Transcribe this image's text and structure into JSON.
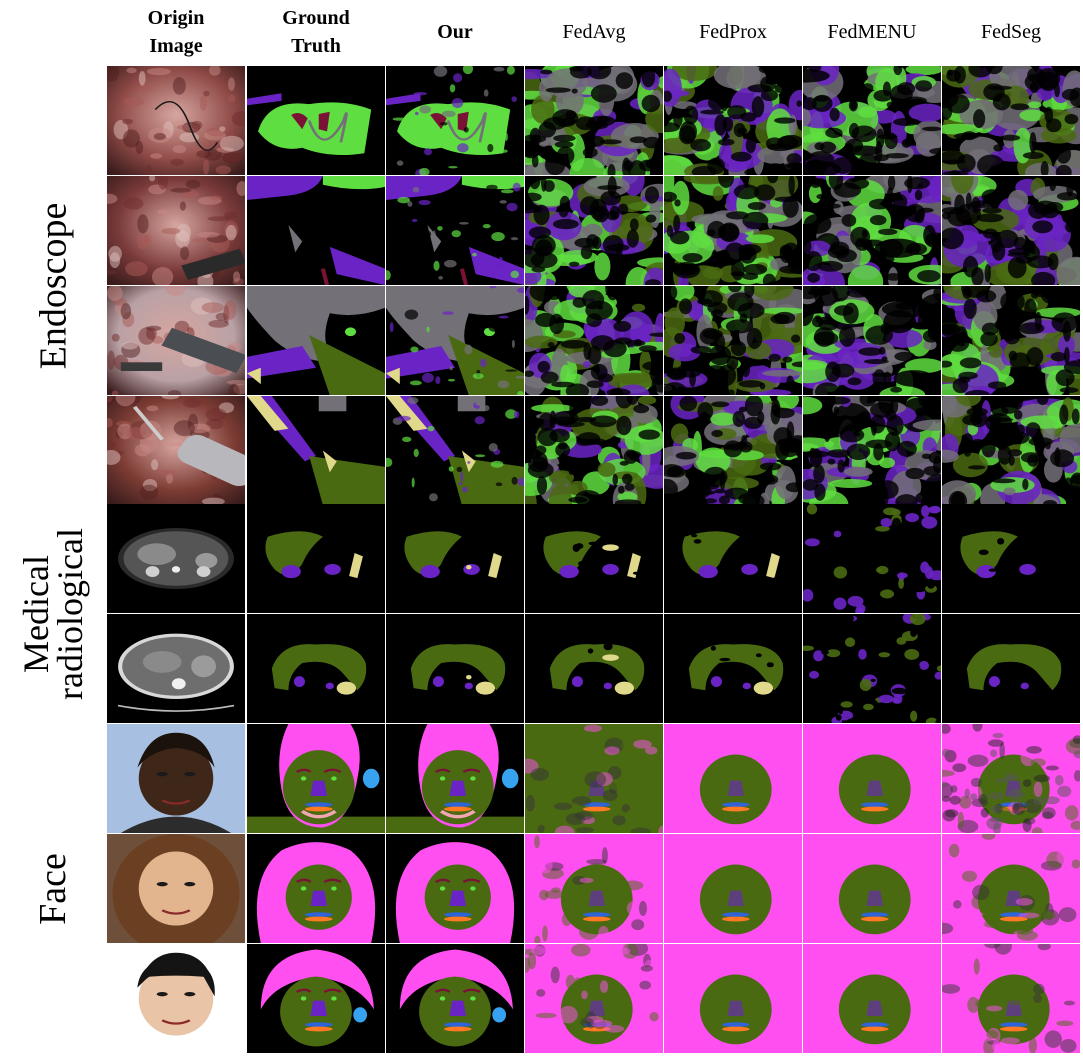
{
  "columns": [
    {
      "key": "origin",
      "label": "Origin\nImage",
      "bold": true
    },
    {
      "key": "gt",
      "label": "Ground\nTruth",
      "bold": true
    },
    {
      "key": "our",
      "label": "Our",
      "bold": true
    },
    {
      "key": "fedavg",
      "label": "FedAvg",
      "bold": false
    },
    {
      "key": "fedprox",
      "label": "FedProx",
      "bold": false
    },
    {
      "key": "fedmenu",
      "label": "FedMENU",
      "bold": false
    },
    {
      "key": "fedseg",
      "label": "FedSeg",
      "bold": false
    }
  ],
  "groups": [
    {
      "label": "Endoscope",
      "rows": [
        0,
        1,
        2,
        3
      ]
    },
    {
      "label": "Medical\nradiological",
      "rows": [
        4,
        5
      ]
    },
    {
      "label": "Face",
      "rows": [
        6,
        7,
        8
      ]
    }
  ],
  "colors": {
    "background": "#000000",
    "green": "#5fde41",
    "olive": "#4a6a12",
    "purple": "#6a23c4",
    "maroon": "#7a1236",
    "gray": "#737078",
    "khaki": "#e0d88a",
    "magenta": "#ff4ff0",
    "blue": "#2f63d8",
    "orange": "#ff7a20",
    "cyan": "#37a2f0",
    "pink": "#f2a6b2"
  }
}
